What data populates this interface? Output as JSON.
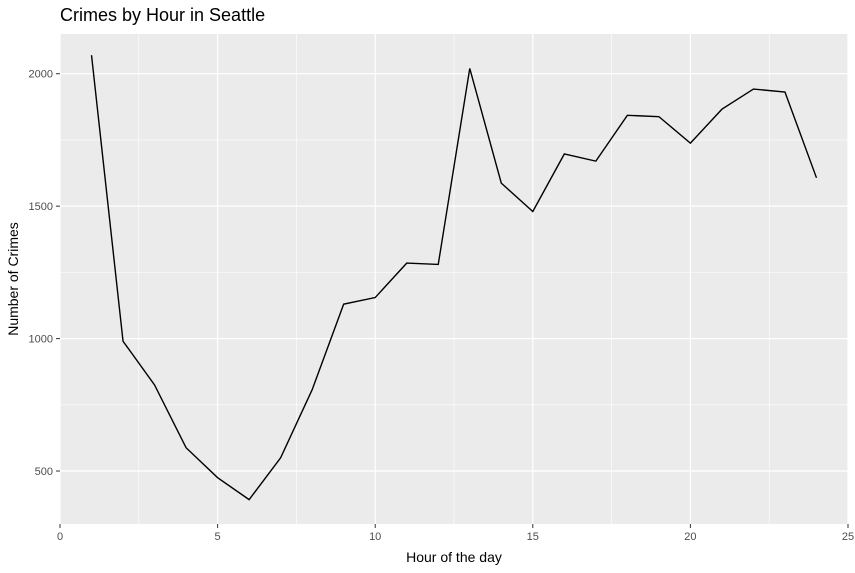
{
  "chart_data": {
    "type": "line",
    "title": "Crimes by Hour in Seattle",
    "xlabel": "Hour of the day",
    "ylabel": "Number of Crimes",
    "xlim": [
      0,
      25
    ],
    "ylim": [
      300,
      2150
    ],
    "x_ticks": [
      0,
      5,
      10,
      15,
      20,
      25
    ],
    "y_ticks": [
      500,
      1000,
      1500,
      2000
    ],
    "grid": true,
    "legend": "none",
    "colors": {
      "panel": "#ebebeb",
      "grid": "#ffffff",
      "line": "#000000"
    },
    "series": [
      {
        "x": [
          1,
          2,
          3,
          4,
          5,
          6,
          7,
          8,
          9,
          10,
          11,
          12,
          13,
          14,
          15,
          16,
          17,
          18,
          19,
          20,
          21,
          22,
          23,
          24
        ],
        "values": [
          2070,
          990,
          825,
          588,
          475,
          392,
          550,
          807,
          1130,
          1155,
          1285,
          1280,
          2020,
          1587,
          1480,
          1697,
          1670,
          1843,
          1838,
          1738,
          1866,
          1942,
          1931,
          1607
        ]
      }
    ]
  }
}
